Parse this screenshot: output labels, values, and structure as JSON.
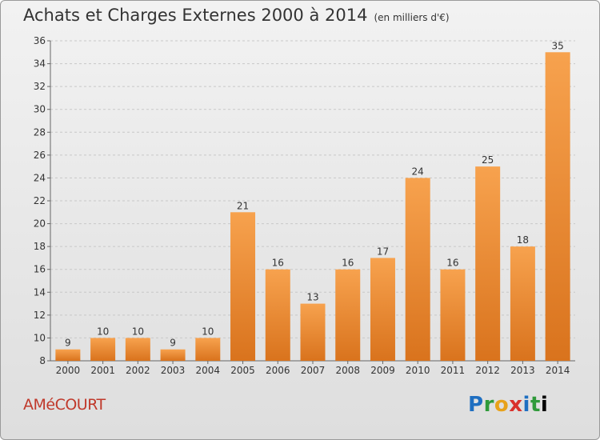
{
  "header": {
    "title": "Achats et Charges Externes 2000 à 2014",
    "subtitle": "(en milliers d'€)"
  },
  "footer": {
    "place": "AMéCOURT",
    "logo": "Proxiti"
  },
  "colors": {
    "bar_light": "#f7a24e",
    "bar_dark": "#d9731d"
  },
  "chart_data": {
    "type": "bar",
    "title": "Achats et Charges Externes 2000 à 2014",
    "subtitle": "(en milliers d'€)",
    "categories": [
      "2000",
      "2001",
      "2002",
      "2003",
      "2004",
      "2005",
      "2006",
      "2007",
      "2008",
      "2009",
      "2010",
      "2011",
      "2012",
      "2013",
      "2014"
    ],
    "values": [
      9,
      10,
      10,
      9,
      10,
      21,
      16,
      13,
      16,
      17,
      24,
      16,
      25,
      18,
      35
    ],
    "ylim": [
      8,
      36
    ],
    "yticks": [
      8,
      10,
      12,
      14,
      16,
      18,
      20,
      22,
      24,
      26,
      28,
      30,
      32,
      34,
      36
    ],
    "grid": true
  }
}
